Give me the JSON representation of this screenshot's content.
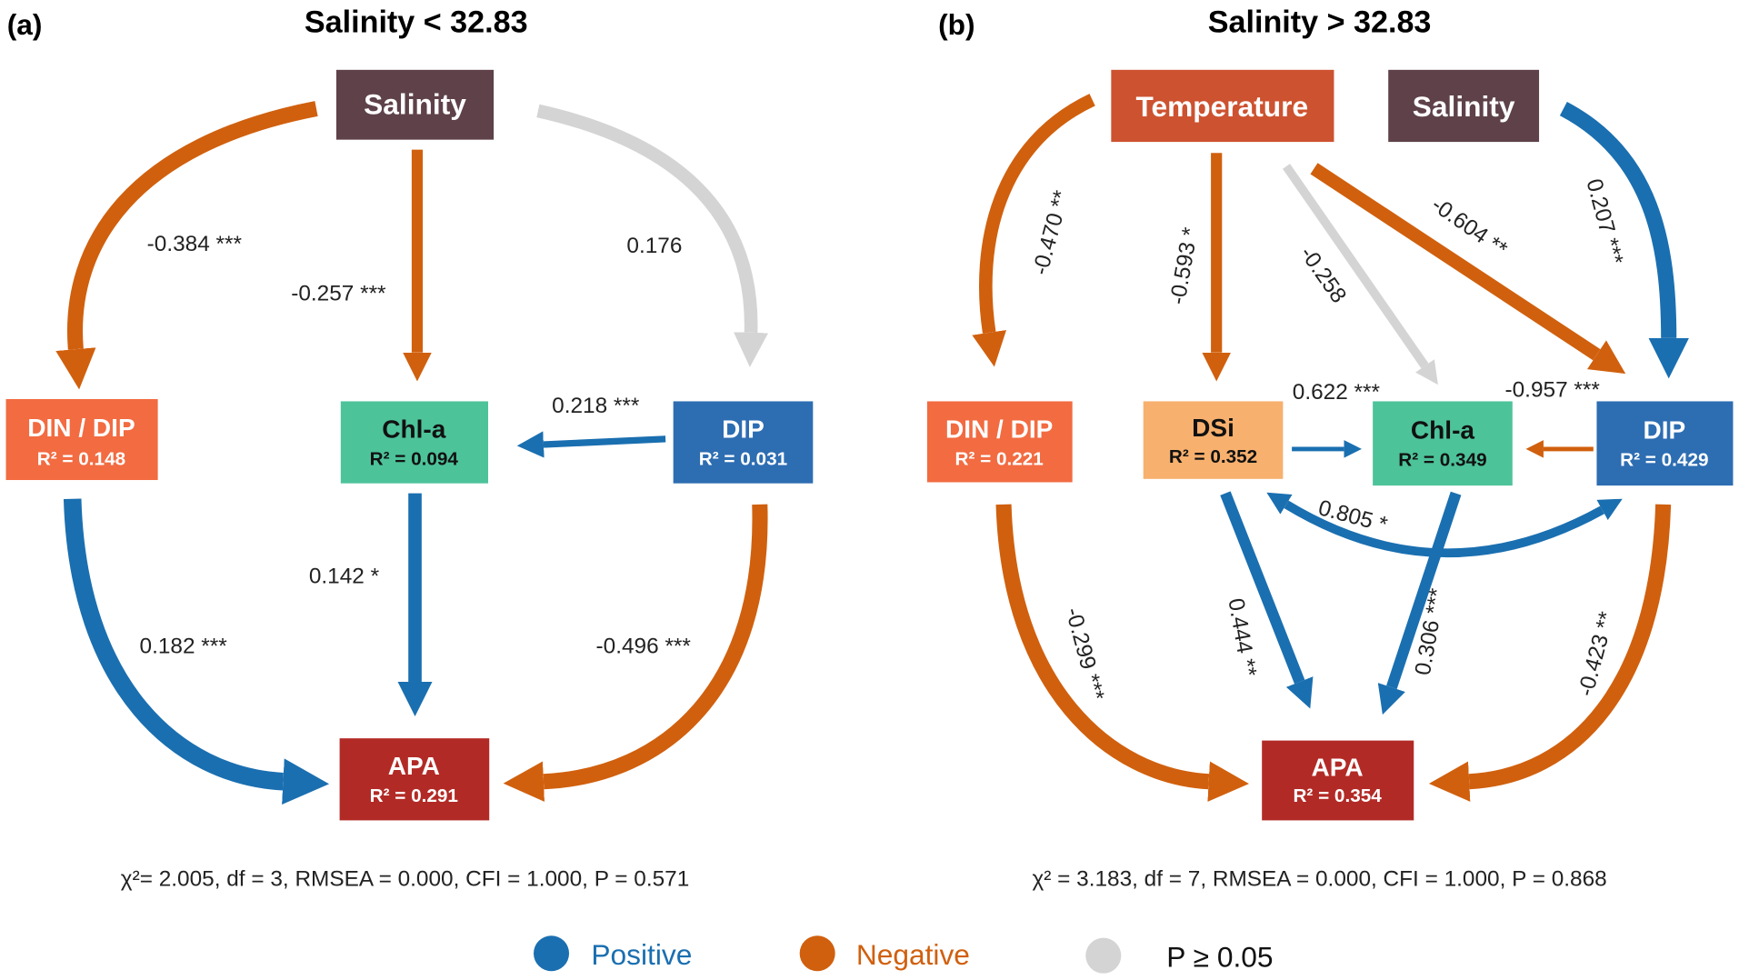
{
  "panels": [
    {
      "tag": "(a)",
      "title": "Salinity < 32.83",
      "nodes": [
        {
          "label": "Salinity"
        },
        {
          "label": "DIN / DIP",
          "r2": "R² = 0.148"
        },
        {
          "label": "Chl-a",
          "r2": "R² = 0.094"
        },
        {
          "label": "DIP",
          "r2": "R² = 0.031"
        },
        {
          "label": "APA",
          "r2": "R² = 0.291"
        }
      ],
      "paths": [
        "-0.384 ***",
        "-0.257 ***",
        "0.176",
        "0.218 ***",
        "0.142 *",
        "0.182 ***",
        "-0.496 ***"
      ],
      "fit": "χ²= 2.005, df = 3, RMSEA = 0.000, CFI = 1.000,  P = 0.571"
    },
    {
      "tag": "(b)",
      "title": "Salinity > 32.83",
      "nodes": [
        {
          "label": "Temperature"
        },
        {
          "label": "Salinity"
        },
        {
          "label": "DIN / DIP",
          "r2": "R² = 0.221"
        },
        {
          "label": "DSi",
          "r2": "R² = 0.352"
        },
        {
          "label": "Chl-a",
          "r2": "R² = 0.349"
        },
        {
          "label": "DIP",
          "r2": "R² = 0.429"
        },
        {
          "label": "APA",
          "r2": "R² = 0.354"
        }
      ],
      "paths": [
        "-0.470 **",
        "-0.593 *",
        "-0.258",
        "-0.604 **",
        "0.207 ***",
        "0.622 ***",
        "-0.957 ***",
        "0.805 *",
        "-0.299 ***",
        "0.444 **",
        "0.306 ***",
        "-0.423 **"
      ],
      "fit": "χ² = 3.183, df = 7, RMSEA = 0.000, CFI = 1.000, P = 0.868"
    }
  ],
  "legend": [
    "Positive",
    "Negative",
    "P ≥ 0.05"
  ]
}
